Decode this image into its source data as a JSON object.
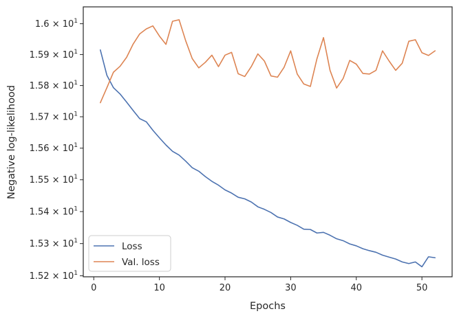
{
  "chart_data": {
    "type": "line",
    "xlabel": "Epochs",
    "ylabel": "Negative log-likelihood",
    "xlim": [
      -1.6,
      54.6
    ],
    "ylim": [
      15.197,
      16.055
    ],
    "xticks": [
      0,
      10,
      20,
      30,
      40,
      50
    ],
    "xtick_labels": [
      "0",
      "10",
      "20",
      "30",
      "40",
      "50"
    ],
    "yticks": [
      15.2,
      15.3,
      15.4,
      15.5,
      15.6,
      15.7,
      15.8,
      15.9,
      16.0
    ],
    "ytick_mantissa": [
      "1.52",
      "1.53",
      "1.54",
      "1.55",
      "1.56",
      "1.57",
      "1.58",
      "1.59",
      "1.6"
    ],
    "ytick_base": "10",
    "ytick_exponent": "1",
    "ytick_sep": "×",
    "grid": false,
    "legend_position": "lower-left",
    "x": [
      1,
      2,
      3,
      4,
      5,
      6,
      7,
      8,
      9,
      10,
      11,
      12,
      13,
      14,
      15,
      16,
      17,
      18,
      19,
      20,
      21,
      22,
      23,
      24,
      25,
      26,
      27,
      28,
      29,
      30,
      31,
      32,
      33,
      34,
      35,
      36,
      37,
      38,
      39,
      40,
      41,
      42,
      43,
      44,
      45,
      46,
      47,
      48,
      49,
      50,
      51,
      52
    ],
    "series": [
      {
        "name": "Loss",
        "color": "#4c72b0",
        "values": [
          15.915,
          15.833,
          15.793,
          15.773,
          15.747,
          15.72,
          15.694,
          15.684,
          15.657,
          15.633,
          15.61,
          15.59,
          15.578,
          15.559,
          15.538,
          15.527,
          15.51,
          15.495,
          15.483,
          15.468,
          15.458,
          15.445,
          15.44,
          15.43,
          15.415,
          15.407,
          15.397,
          15.383,
          15.377,
          15.366,
          15.357,
          15.345,
          15.344,
          15.333,
          15.335,
          15.326,
          15.315,
          15.309,
          15.299,
          15.293,
          15.284,
          15.278,
          15.273,
          15.264,
          15.258,
          15.252,
          15.243,
          15.238,
          15.243,
          15.228,
          15.259,
          15.256
        ]
      },
      {
        "name": "Val. loss",
        "color": "#dd8452",
        "values": [
          15.745,
          15.793,
          15.843,
          15.862,
          15.891,
          15.934,
          15.967,
          15.983,
          15.993,
          15.96,
          15.933,
          16.008,
          16.013,
          15.945,
          15.887,
          15.857,
          15.875,
          15.898,
          15.861,
          15.898,
          15.907,
          15.838,
          15.829,
          15.861,
          15.902,
          15.879,
          15.831,
          15.827,
          15.859,
          15.912,
          15.837,
          15.805,
          15.797,
          15.886,
          15.955,
          15.849,
          15.792,
          15.823,
          15.881,
          15.869,
          15.839,
          15.837,
          15.849,
          15.912,
          15.879,
          15.849,
          15.872,
          15.943,
          15.948,
          15.906,
          15.897,
          15.912
        ]
      }
    ]
  }
}
